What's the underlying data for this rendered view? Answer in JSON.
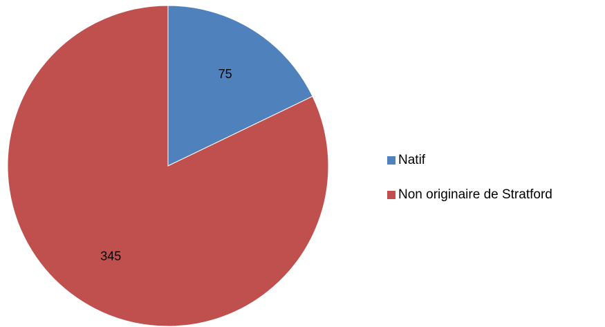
{
  "chart_data": {
    "type": "pie",
    "categories": [
      "Natif",
      "Non originaire de Stratford"
    ],
    "values": [
      75,
      345
    ],
    "colors": [
      "#4F81BD",
      "#C0504D"
    ],
    "data_labels": [
      "75",
      "345"
    ],
    "start_angle": "12 o'clock",
    "direction": "clockwise",
    "legend_position": "right"
  }
}
